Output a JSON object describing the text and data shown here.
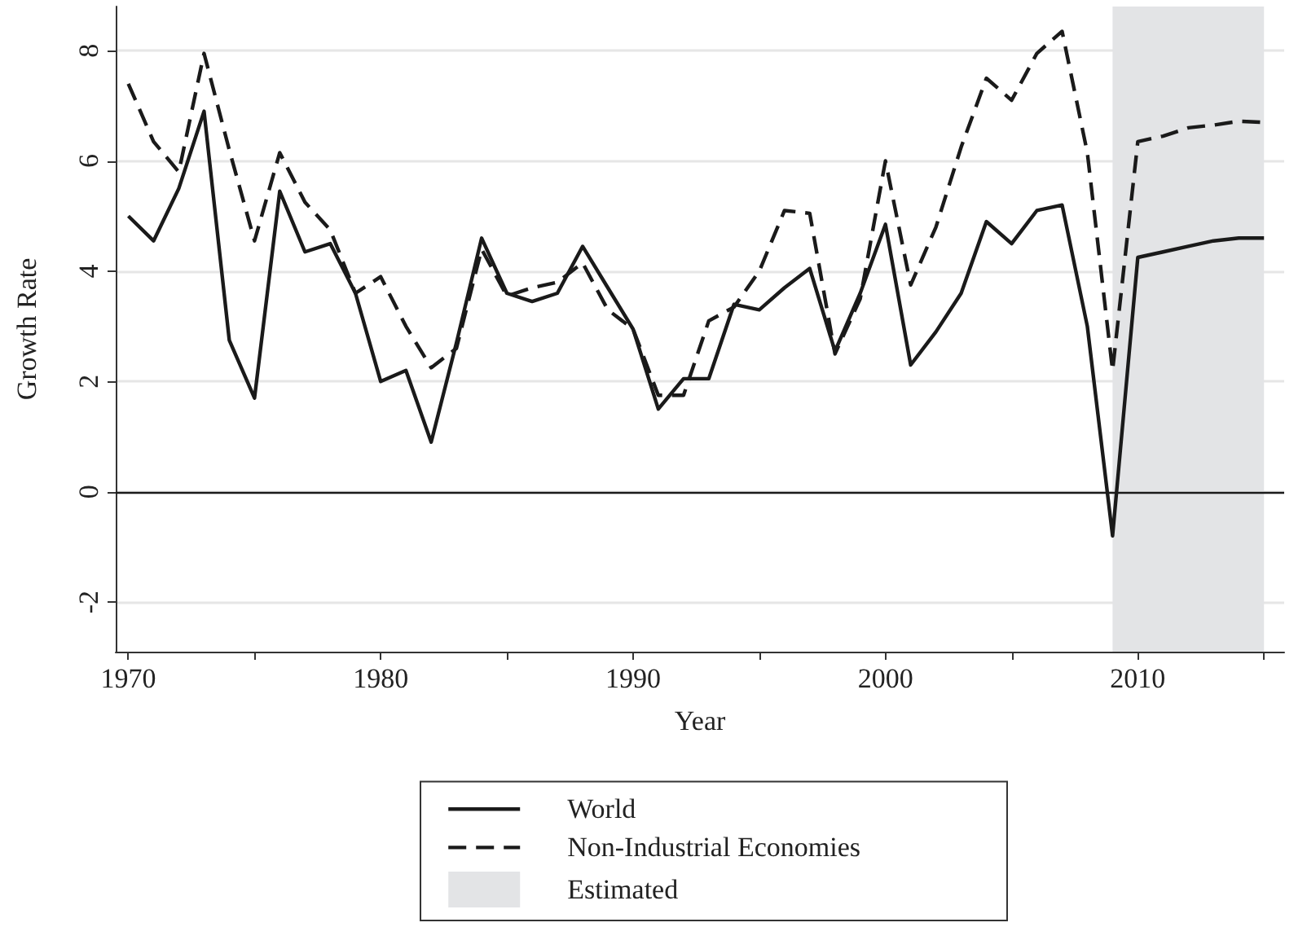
{
  "chart_data": {
    "type": "line",
    "xlabel": "Year",
    "ylabel": "Growth Rate",
    "x": [
      1970,
      1971,
      1972,
      1973,
      1974,
      1975,
      1976,
      1977,
      1978,
      1979,
      1980,
      1981,
      1982,
      1983,
      1984,
      1985,
      1986,
      1987,
      1988,
      1989,
      1990,
      1991,
      1992,
      1993,
      1994,
      1995,
      1996,
      1997,
      1998,
      1999,
      2000,
      2001,
      2002,
      2003,
      2004,
      2005,
      2006,
      2007,
      2008,
      2009,
      2010,
      2011,
      2012,
      2013,
      2014,
      2015
    ],
    "series": [
      {
        "name": "World",
        "color": "#1a1a1a",
        "line_style": "solid",
        "values": [
          5.0,
          4.55,
          5.5,
          6.9,
          2.75,
          1.7,
          5.45,
          4.35,
          4.5,
          3.6,
          2.0,
          2.2,
          0.9,
          2.7,
          4.6,
          3.6,
          3.45,
          3.6,
          4.45,
          3.7,
          2.95,
          1.5,
          2.05,
          2.05,
          3.4,
          3.3,
          3.7,
          4.05,
          2.55,
          3.6,
          4.85,
          2.3,
          2.9,
          3.6,
          4.9,
          4.5,
          5.1,
          5.2,
          3.0,
          -0.8,
          4.25,
          4.35,
          4.45,
          4.55,
          4.6,
          4.6
        ]
      },
      {
        "name": "Non-Industrial Economies",
        "color": "#1a1a1a",
        "line_style": "dashed",
        "values": [
          7.4,
          6.35,
          5.8,
          7.95,
          6.2,
          4.55,
          6.15,
          5.25,
          4.75,
          3.6,
          3.9,
          3.0,
          2.25,
          2.6,
          4.4,
          3.55,
          3.7,
          3.8,
          4.15,
          3.3,
          2.95,
          1.75,
          1.75,
          3.1,
          3.35,
          4.0,
          5.1,
          5.05,
          2.5,
          3.5,
          6.0,
          3.75,
          4.8,
          6.25,
          7.5,
          7.1,
          7.95,
          8.35,
          6.15,
          2.2,
          6.35,
          6.45,
          6.6,
          6.65,
          6.72,
          6.7
        ]
      }
    ],
    "xlim": [
      1969.5,
      2015.8
    ],
    "xticks": [
      1970,
      {
        "value": 1975,
        "label": null
      },
      1980,
      {
        "value": 1985,
        "label": null
      },
      1990,
      {
        "value": 1995,
        "label": null
      },
      2000,
      {
        "value": 2005,
        "label": null
      },
      2010,
      {
        "value": 2015,
        "label": null
      }
    ],
    "ylim": [
      -2.9,
      8.8
    ],
    "yticks": [
      -2,
      0,
      2,
      4,
      6,
      8
    ],
    "grid": "y",
    "legend": "bottom",
    "marker": "none",
    "ref_lines": [
      {
        "axis": "y",
        "value": 0,
        "label": null,
        "color": "#1a1a1a",
        "line_style": "solid"
      }
    ],
    "bands": [
      {
        "axis": "x",
        "from": 2009,
        "to": 2015,
        "label": "Estimated",
        "color": "#e3e4e6"
      }
    ]
  }
}
